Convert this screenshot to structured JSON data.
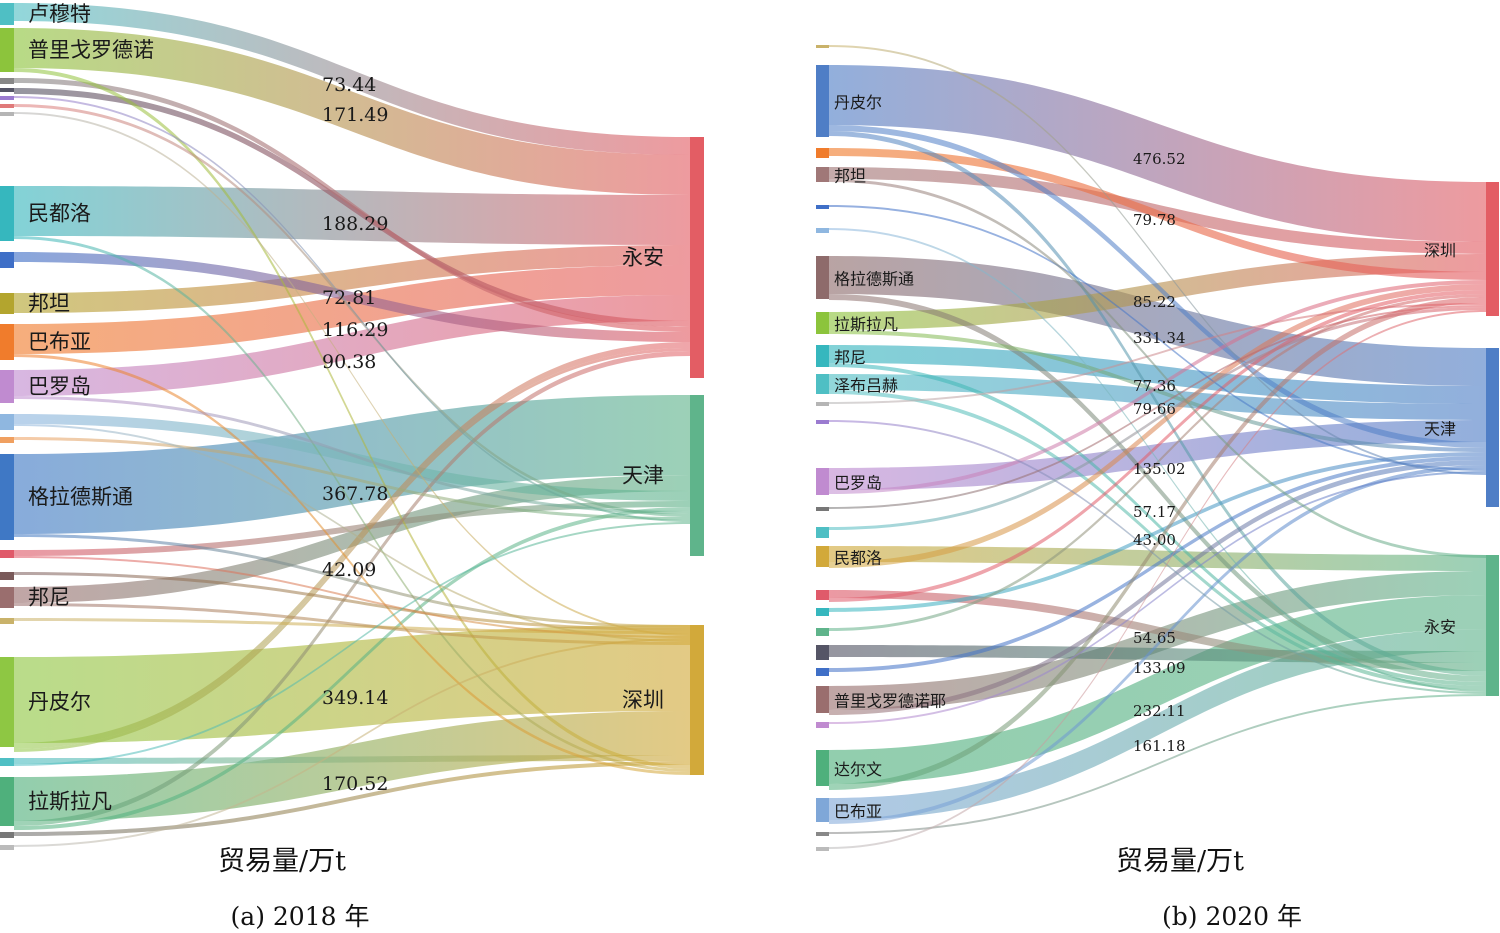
{
  "chart_data": [
    {
      "type": "sankey",
      "caption": "(a) 2018 年",
      "xlabel": "贸易量/万t",
      "targets": [
        {
          "name": "永安",
          "color": "#e35d64"
        },
        {
          "name": "天津",
          "color": "#5fb48b"
        },
        {
          "name": "深圳",
          "color": "#d2a93a"
        }
      ],
      "sources": [
        {
          "name": "卢穆特",
          "color": "#4fbfc4"
        },
        {
          "name": "普里戈罗德诺",
          "color": "#8cc43c"
        },
        {
          "name": "",
          "color": "#888888"
        },
        {
          "name": "",
          "color": "#555566"
        },
        {
          "name": "",
          "color": "#9b7bd0"
        },
        {
          "name": "",
          "color": "#e07a7a"
        },
        {
          "name": "",
          "color": "#b5b5b5"
        },
        {
          "name": "民都洛",
          "color": "#36b7be"
        },
        {
          "name": "",
          "color": "#3f6fc7"
        },
        {
          "name": "邦坦",
          "color": "#b3a52e"
        },
        {
          "name": "巴布亚",
          "color": "#f07c2c"
        },
        {
          "name": "巴罗岛",
          "color": "#c08bd0"
        },
        {
          "name": "",
          "color": "#8fb7e0"
        },
        {
          "name": "",
          "color": "#f0a060"
        },
        {
          "name": "格拉德斯通",
          "color": "#3f78c5"
        },
        {
          "name": "",
          "color": "#e05a6a"
        },
        {
          "name": "",
          "color": "#7a5a5a"
        },
        {
          "name": "邦尼",
          "color": "#9a6e6e"
        },
        {
          "name": "",
          "color": "#c9b26a"
        },
        {
          "name": "丹皮尔",
          "color": "#8ec743"
        },
        {
          "name": "",
          "color": "#4fbfc4"
        },
        {
          "name": "拉斯拉凡",
          "color": "#4fb07c"
        },
        {
          "name": "",
          "color": "#777777"
        },
        {
          "name": "",
          "color": "#bbbbbb"
        }
      ],
      "values": [
        "73.44",
        "171.49",
        "188.29",
        "72.81",
        "116.29",
        "90.38",
        "367.78",
        "42.09",
        "349.14",
        "170.52"
      ]
    },
    {
      "type": "sankey",
      "caption": "(b) 2020 年",
      "xlabel": "贸易量/万t",
      "targets": [
        {
          "name": "深圳",
          "color": "#e35d64"
        },
        {
          "name": "天津",
          "color": "#4f7ec6"
        },
        {
          "name": "永安",
          "color": "#5fb48b"
        }
      ],
      "sources": [
        {
          "name": "",
          "color": "#c9b26a"
        },
        {
          "name": "丹皮尔",
          "color": "#4f7ec6"
        },
        {
          "name": "",
          "color": "#f07c2c"
        },
        {
          "name": "邦坦",
          "color": "#a07878"
        },
        {
          "name": "",
          "color": "#3f6fc7"
        },
        {
          "name": "",
          "color": "#8fb7e0"
        },
        {
          "name": "格拉德斯通",
          "color": "#8e6b6b"
        },
        {
          "name": "拉斯拉凡",
          "color": "#8cc43c"
        },
        {
          "name": "邦尼",
          "color": "#36b7be"
        },
        {
          "name": "泽布吕赫",
          "color": "#4fbfc4"
        },
        {
          "name": "",
          "color": "#b5b5b5"
        },
        {
          "name": "",
          "color": "#9b7bd0"
        },
        {
          "name": "巴罗岛",
          "color": "#c08bd0"
        },
        {
          "name": "",
          "color": "#777777"
        },
        {
          "name": "",
          "color": "#4fbfc4"
        },
        {
          "name": "民都洛",
          "color": "#d2a93a"
        },
        {
          "name": "",
          "color": "#e05a6a"
        },
        {
          "name": "",
          "color": "#36b7be"
        },
        {
          "name": "",
          "color": "#5fb48b"
        },
        {
          "name": "",
          "color": "#555566"
        },
        {
          "name": "",
          "color": "#3f6fc7"
        },
        {
          "name": "普里戈罗德诺耶",
          "color": "#9a6e6e"
        },
        {
          "name": "",
          "color": "#c08bd0"
        },
        {
          "name": "达尔文",
          "color": "#4fb07c"
        },
        {
          "name": "巴布亚",
          "color": "#7fa7d8"
        },
        {
          "name": "",
          "color": "#888888"
        },
        {
          "name": "",
          "color": "#bbbbbb"
        }
      ],
      "values": [
        "476.52",
        "79.78",
        "85.22",
        "331.34",
        "77.36",
        "79.66",
        "135.02",
        "57.17",
        "43.00",
        "54.65",
        "133.09",
        "232.11",
        "161.18"
      ]
    }
  ]
}
